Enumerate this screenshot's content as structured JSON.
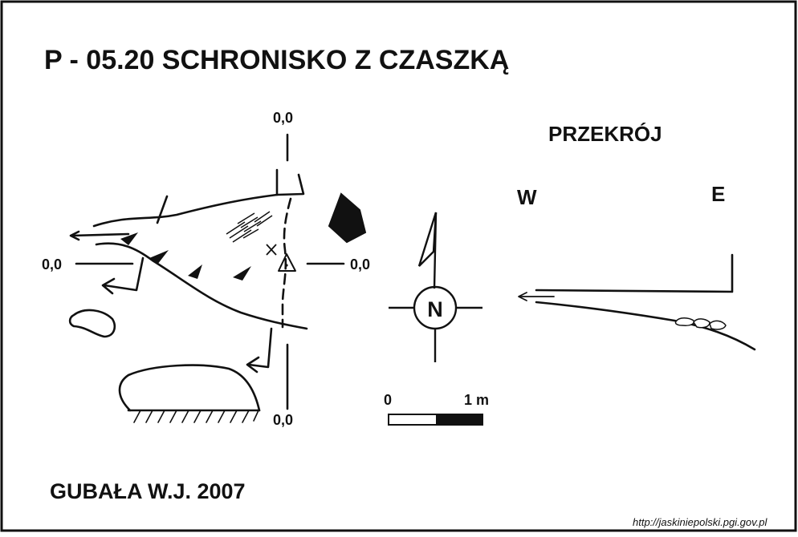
{
  "title": "P - 05.20  SCHRONISKO Z CZASZKĄ",
  "section_label": "PRZEKRÓJ",
  "west_label": "W",
  "east_label": "E",
  "datum_labels": {
    "top": "0,0",
    "left": "0,0",
    "right": "0,0",
    "bottom": "0,0"
  },
  "north_label": "N",
  "scale": {
    "start": "0",
    "end": "1 m"
  },
  "author": "GUBAŁA W.J. 2007",
  "source_url": "http://jaskiniepolski.pgi.gov.pl",
  "colors": {
    "ink": "#111111",
    "paper": "#ffffff"
  }
}
